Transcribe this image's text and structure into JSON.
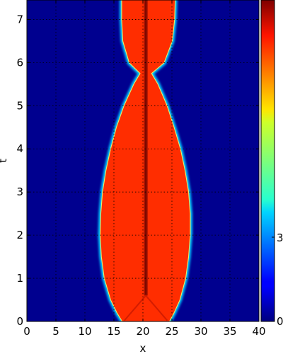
{
  "chart_data": {
    "type": "heatmap",
    "title": "",
    "xlabel": "x",
    "ylabel": "t",
    "xlim": [
      0,
      40
    ],
    "ylim": [
      0,
      7.45
    ],
    "x_ticks": [
      0,
      5,
      10,
      15,
      20,
      25,
      30,
      35,
      40
    ],
    "y_ticks": [
      0,
      1,
      2,
      3,
      4,
      5,
      6,
      7
    ],
    "grid": true,
    "grid_style": "dotted",
    "colormap": "jet",
    "colorbar": {
      "position": "right",
      "tick_labels": [
        "3",
        "0"
      ]
    },
    "background_value_color": "#00008f",
    "high_value_color": "#ff2d00",
    "edge_color": "#00c8ff",
    "core_color": "#a31000",
    "center_x": 20.5,
    "boundary": {
      "t": [
        0,
        0.2,
        0.5,
        1.0,
        1.5,
        2.0,
        2.5,
        3.0,
        3.5,
        4.0,
        4.5,
        5.0,
        5.5,
        5.75,
        6.0,
        6.5,
        7.0,
        7.45
      ],
      "left_x": [
        16.5,
        15.6,
        14.5,
        13.4,
        12.9,
        12.7,
        12.8,
        13.1,
        13.7,
        14.5,
        15.5,
        16.8,
        18.5,
        19.6,
        17.7,
        16.6,
        16.4,
        16.4
      ],
      "right_x": [
        24.5,
        25.3,
        26.3,
        27.3,
        27.8,
        28.1,
        28.1,
        27.8,
        27.2,
        26.4,
        25.3,
        24.1,
        22.5,
        21.4,
        23.6,
        25.0,
        25.4,
        25.5
      ]
    }
  }
}
